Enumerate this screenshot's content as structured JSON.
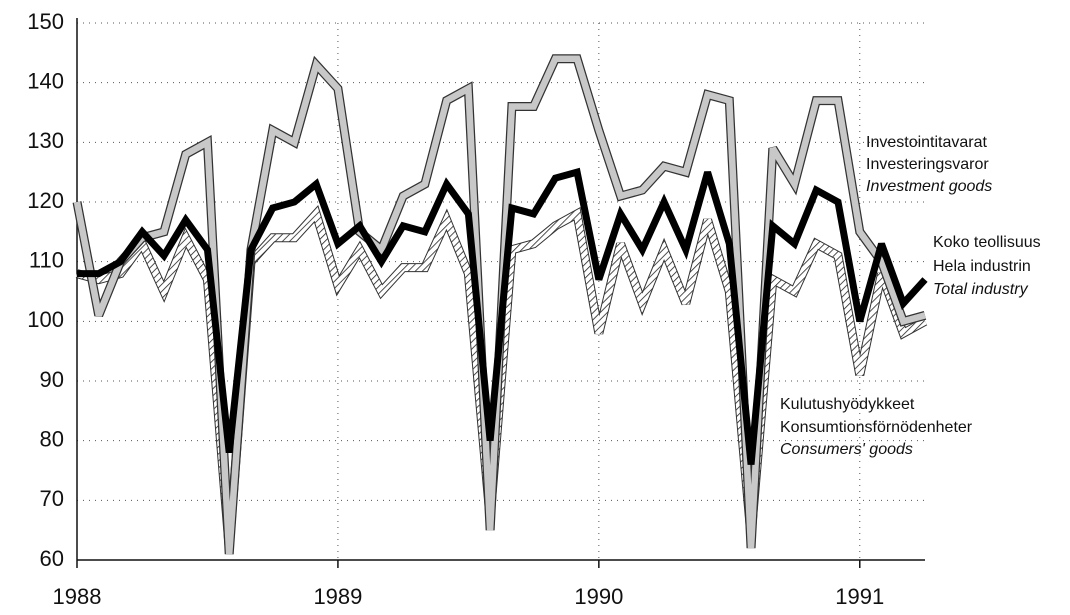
{
  "chart_data": {
    "type": "line",
    "xlim": [
      1988,
      1991.25
    ],
    "xticks": [
      1988,
      1989,
      1990,
      1991
    ],
    "ylim": [
      60,
      150
    ],
    "yticks": [
      60,
      70,
      80,
      90,
      100,
      110,
      120,
      130,
      140,
      150
    ],
    "grid": true,
    "x": [
      1988,
      1988.0833,
      1988.1667,
      1988.25,
      1988.3333,
      1988.4167,
      1988.5,
      1988.5833,
      1988.6667,
      1988.75,
      1988.8333,
      1988.9167,
      1989,
      1989.0833,
      1989.1667,
      1989.25,
      1989.3333,
      1989.4167,
      1989.5,
      1989.5833,
      1989.6667,
      1989.75,
      1989.8333,
      1989.9167,
      1990,
      1990.0833,
      1990.1667,
      1990.25,
      1990.3333,
      1990.4167,
      1990.5,
      1990.5833,
      1990.6667,
      1990.75,
      1990.8333,
      1990.9167,
      1991,
      1991.0833,
      1991.1667,
      1991.25
    ],
    "series": [
      {
        "name": [
          "Kulutushyödykkeet",
          "Konsumtionsförnödenheter",
          "Consumers' goods"
        ],
        "color": "#333333",
        "style": "hatch",
        "values": [
          108,
          107,
          108,
          113,
          105,
          114,
          107,
          62,
          110,
          114,
          114,
          118,
          106,
          112,
          105,
          109,
          109,
          117,
          108,
          67,
          112,
          113,
          116,
          118,
          98,
          113,
          103,
          112,
          103,
          117,
          105,
          64,
          107,
          105,
          113,
          111,
          91,
          108,
          98,
          100
        ]
      },
      {
        "name": [
          "Investointitavarat",
          "Investeringsvaror",
          "Investment goods"
        ],
        "color": "#c8c8c8",
        "style": "outlined",
        "values": [
          120,
          101,
          110,
          114,
          115,
          128,
          130,
          61,
          112,
          132,
          130,
          143,
          139,
          115,
          112,
          121,
          123,
          137,
          139,
          65,
          136,
          136,
          144,
          144,
          132,
          121,
          122,
          126,
          125,
          138,
          137,
          62,
          129,
          123,
          137,
          137,
          115,
          110,
          100,
          101
        ]
      },
      {
        "name": [
          "Koko teollisuus",
          "Hela industrin",
          "Total industry"
        ],
        "color": "#000000",
        "style": "solid",
        "values": [
          108,
          108,
          110,
          115,
          111,
          117,
          112,
          78,
          112,
          119,
          120,
          123,
          113,
          116,
          110,
          116,
          115,
          123,
          118,
          80,
          119,
          118,
          124,
          125,
          107,
          118,
          112,
          120,
          112,
          125,
          113,
          76,
          116,
          113,
          122,
          120,
          100,
          113,
          103,
          107
        ]
      }
    ]
  }
}
